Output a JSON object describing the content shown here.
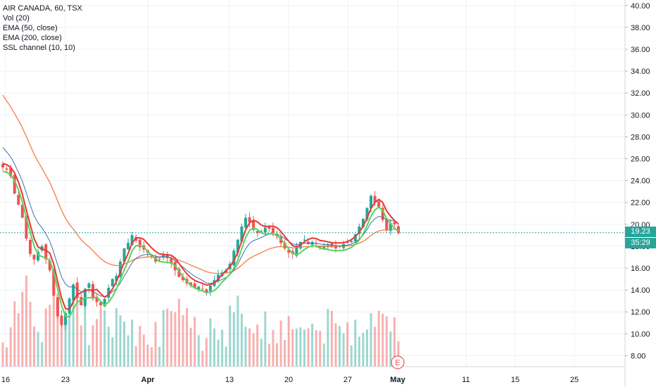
{
  "legend": {
    "symbol": "AIR CANADA, 60, TSX",
    "vol": "Vol (20)",
    "ema50": "EMA (50, close)",
    "ema200": "EMA (200, close)",
    "ssl": "SSL channel (10, 10)"
  },
  "price_badge": {
    "value": "19.23",
    "countdown": "35:29"
  },
  "event_marker": "E",
  "colors": {
    "up": "#26a69a",
    "down": "#ef5350",
    "ema50": "#3f6fa8",
    "ema200": "#f57c43",
    "ssl_up": "#5ad35a",
    "ssl_down": "#e53935",
    "grid": "#eef0f4",
    "price_line": "#26a69a"
  },
  "chart_data": {
    "type": "candlestick",
    "y_axis": {
      "ticks": [
        "8.00",
        "10.00",
        "12.00",
        "14.00",
        "16.00",
        "18.00",
        "20.00",
        "22.00",
        "24.00",
        "26.00",
        "28.00",
        "30.00",
        "32.00",
        "34.00",
        "36.00",
        "38.00",
        "40.00"
      ],
      "range": [
        7,
        40.5
      ]
    },
    "x_axis": {
      "ticks": [
        "16",
        "23",
        "Apr",
        "13",
        "20",
        "27",
        "May",
        "11",
        "15",
        "25"
      ]
    },
    "last_price": 19.23,
    "close": [
      25.2,
      25.0,
      24.4,
      22.8,
      21.8,
      20.6,
      18.7,
      17.3,
      16.8,
      17.5,
      18.0,
      16.8,
      15.8,
      13.5,
      11.6,
      10.8,
      11.9,
      13.2,
      14.5,
      13.3,
      12.6,
      14.1,
      14.6,
      13.2,
      12.9,
      12.6,
      13.2,
      14.2,
      15.0,
      15.3,
      16.6,
      17.8,
      18.3,
      19.0,
      18.5,
      17.9,
      17.7,
      17.4,
      17.0,
      16.6,
      16.8,
      17.2,
      16.9,
      16.4,
      15.8,
      15.2,
      14.9,
      14.6,
      14.4,
      14.2,
      14.3,
      14.1,
      13.8,
      14.4,
      14.9,
      15.4,
      15.6,
      15.8,
      16.4,
      17.6,
      18.6,
      19.8,
      20.6,
      20.2,
      19.5,
      19.2,
      19.4,
      19.7,
      19.6,
      19.2,
      18.9,
      18.3,
      17.8,
      17.4,
      17.3,
      17.9,
      18.4,
      18.6,
      18.2,
      18.4,
      18.2,
      17.9,
      18.0,
      18.1,
      17.9,
      17.8,
      18.0,
      18.2,
      18.3,
      18.5,
      19.1,
      19.8,
      20.5,
      21.5,
      22.6,
      22.0,
      21.6,
      20.4,
      19.5,
      20.1,
      20.0,
      19.2
    ],
    "volume_series": "present",
    "ema50": "present",
    "ema200": "present",
    "ssl_channel": "present"
  }
}
